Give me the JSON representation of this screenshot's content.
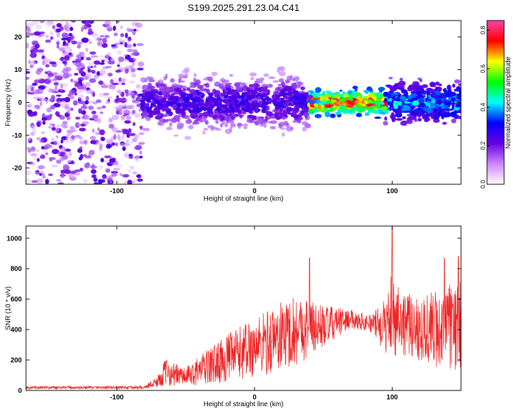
{
  "chart_data": [
    {
      "type": "heatmap",
      "title": "S199.2025.291.23.04.C41",
      "xlabel": "Height of straight line (km)",
      "ylabel": "Frequency (Hz)",
      "xlim": [
        -166,
        150
      ],
      "ylim": [
        -25,
        25
      ],
      "x_ticks": [
        -100,
        0,
        100
      ],
      "y_ticks": [
        -20,
        -10,
        0,
        10,
        20
      ],
      "colorbar": {
        "label": "Normalized spectral amplitude",
        "range": [
          0.0,
          0.85
        ],
        "ticks": [
          0.0,
          0.2,
          0.4,
          0.6,
          0.8
        ],
        "colors": [
          "#ffffff",
          "#cc88ff",
          "#6600dd",
          "#0000ff",
          "#00ffff",
          "#00ff00",
          "#ffff00",
          "#ff0000",
          "#ff44aa"
        ]
      },
      "regions": [
        {
          "x": [
            -166,
            -82
          ],
          "freq_spread": 25,
          "amplitude": [
            0.05,
            0.25
          ]
        },
        {
          "x": [
            -82,
            40
          ],
          "freq_spread": 9,
          "amplitude": [
            0.1,
            0.3
          ]
        },
        {
          "x": [
            40,
            95
          ],
          "freq_spread": 4,
          "amplitude": [
            0.3,
            0.85
          ]
        },
        {
          "x": [
            95,
            150
          ],
          "freq_spread": 7,
          "amplitude": [
            0.15,
            0.45
          ]
        }
      ]
    },
    {
      "type": "line",
      "title": "",
      "xlabel": "Height of straight line (km)",
      "ylabel": "SNR (10 * v/v)",
      "xlim": [
        -166,
        150
      ],
      "ylim": [
        0,
        1080
      ],
      "x_ticks": [
        -100,
        0,
        100
      ],
      "y_ticks": [
        0,
        200,
        400,
        600,
        800,
        1000
      ],
      "color": "#ee2222",
      "envelope": [
        {
          "x": -166,
          "mean": 18,
          "amp": 10
        },
        {
          "x": -80,
          "mean": 20,
          "amp": 10
        },
        {
          "x": -70,
          "mean": 60,
          "amp": 40
        },
        {
          "x": -65,
          "mean": 120,
          "amp": 90
        },
        {
          "x": -50,
          "mean": 90,
          "amp": 60
        },
        {
          "x": -30,
          "mean": 170,
          "amp": 130
        },
        {
          "x": -10,
          "mean": 250,
          "amp": 180
        },
        {
          "x": 10,
          "mean": 320,
          "amp": 220
        },
        {
          "x": 30,
          "mean": 400,
          "amp": 240
        },
        {
          "x": 50,
          "mean": 420,
          "amp": 140
        },
        {
          "x": 70,
          "mean": 470,
          "amp": 60
        },
        {
          "x": 85,
          "mean": 440,
          "amp": 60
        },
        {
          "x": 95,
          "mean": 420,
          "amp": 180
        },
        {
          "x": 100,
          "mean": 520,
          "amp": 300
        },
        {
          "x": 110,
          "mean": 430,
          "amp": 200
        },
        {
          "x": 130,
          "mean": 400,
          "amp": 260
        },
        {
          "x": 150,
          "mean": 420,
          "amp": 300
        }
      ],
      "peaks": [
        {
          "x": 100,
          "y": 1080
        },
        {
          "x": 40,
          "y": 870
        },
        {
          "x": 138,
          "y": 870
        },
        {
          "x": 148,
          "y": 880
        }
      ]
    }
  ]
}
